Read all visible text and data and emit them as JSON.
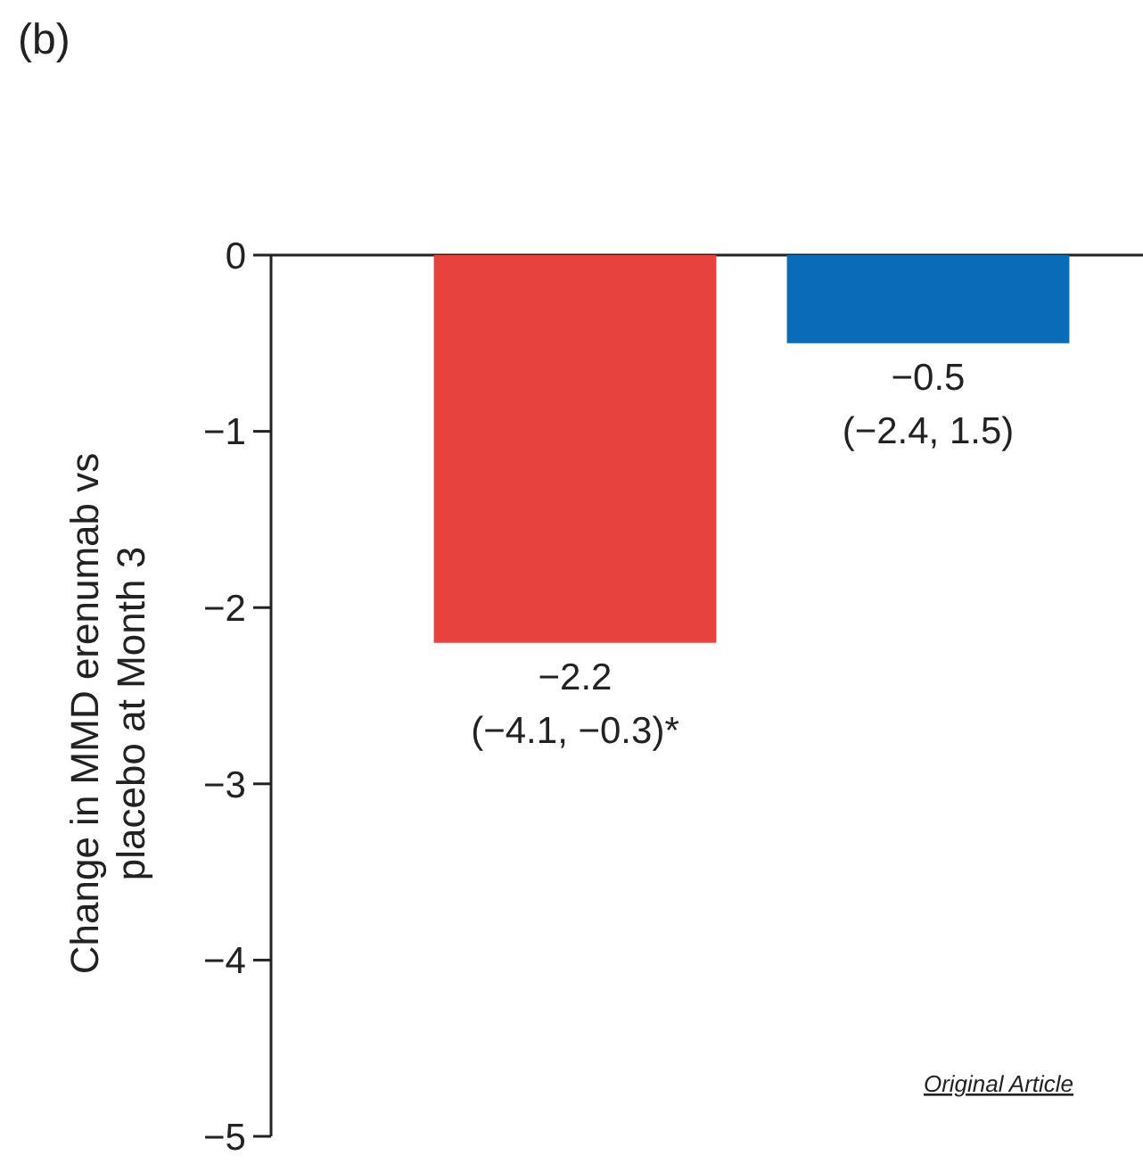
{
  "chart_data": {
    "type": "bar",
    "title": "(b)",
    "ylabel": "Change in MMD erenumab vs\nplacebo at Month 3",
    "categories": [
      null,
      null
    ],
    "values": [
      -2.2,
      -0.5
    ],
    "colors": [
      "#e8423f",
      "#0a6cb8"
    ],
    "value_labels": [
      "−2.2\n(−4.1, −0.3)*",
      "−0.5\n(−2.4, 1.5)"
    ],
    "ylim": [
      -5,
      0
    ],
    "yticks": [
      0,
      {
        "value": -1,
        "label": "−1"
      },
      {
        "value": -2,
        "label": "−2"
      },
      {
        "value": -3,
        "label": "−3"
      },
      {
        "value": -4,
        "label": "−4"
      },
      {
        "value": -5,
        "label": "−5"
      }
    ],
    "grid": false,
    "annotations": [
      "Original Article"
    ]
  }
}
